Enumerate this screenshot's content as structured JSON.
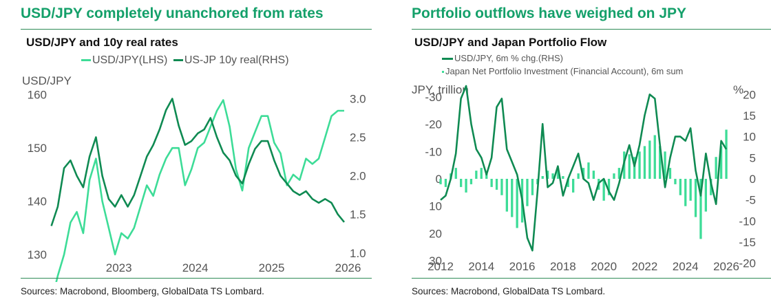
{
  "colors": {
    "light_green": "#3ddc97",
    "dark_green": "#0f8a52",
    "headline_green": "#14a06a",
    "rule": "#2e8b57"
  },
  "left": {
    "headline": "USD/JPY completely unanchored from rates",
    "subtitle": "USD/JPY and 10y real rates",
    "legend": [
      {
        "label": "USD/JPY(LHS)",
        "color": "#3ddc97"
      },
      {
        "label": "US-JP 10y real(RHS)",
        "color": "#0f8a52"
      }
    ],
    "source": "Sources: Macrobond, Bloomberg, GlobalData TS Lombard."
  },
  "right": {
    "headline": "Portfolio outflows have weighed on JPY",
    "subtitle": "USD/JPY and Japan Portfolio Flow",
    "legend": [
      {
        "label": "USD/JPY, 6m % chg.(RHS)",
        "color": "#0f8a52"
      },
      {
        "label": "Japan Net Portfolio Investment (Financial Account), 6m sum",
        "color": "#3ddc97"
      }
    ],
    "source": "Sources: Macrobond, GlobalData TS Lombard."
  },
  "chart_data": [
    {
      "type": "line",
      "title": "USD/JPY and 10y real rates",
      "left_axis_label": "USD/JPY",
      "left_ylim": [
        130,
        161
      ],
      "left_ticks": [
        "160",
        "150",
        "140",
        "130"
      ],
      "right_ylim": [
        0.98,
        3.12
      ],
      "right_ticks": [
        "3.0",
        "2.5",
        "2.0",
        "1.5",
        "1.0"
      ],
      "x_ticks": [
        "2023",
        "2024",
        "2025",
        "2026"
      ],
      "grid": false,
      "series": [
        {
          "name": "USD/JPY(LHS)",
          "axis": "left",
          "x": [
            "2022-03",
            "2022-04",
            "2022-05",
            "2022-06",
            "2022-07",
            "2022-08",
            "2022-09",
            "2022-10",
            "2022-11",
            "2022-12",
            "2023-01",
            "2023-02",
            "2023-03",
            "2023-04",
            "2023-05",
            "2023-06",
            "2023-07",
            "2023-08",
            "2023-09",
            "2023-10",
            "2023-11",
            "2023-12",
            "2024-01",
            "2024-02",
            "2024-03",
            "2024-04",
            "2024-05",
            "2024-06",
            "2024-07",
            "2024-08",
            "2024-09",
            "2024-10",
            "2024-11",
            "2024-12",
            "2025-01",
            "2025-02",
            "2025-03",
            "2025-04",
            "2025-05",
            "2025-06",
            "2025-07",
            "2025-08",
            "2025-09",
            "2025-10",
            "2025-11",
            "2025-12",
            "2026-01"
          ],
          "values": [
            121,
            126,
            130,
            136,
            138,
            134,
            144,
            148,
            140,
            135,
            130,
            134,
            133,
            135,
            139,
            143,
            141,
            145,
            148,
            150,
            150,
            143,
            146,
            150,
            151,
            154,
            157,
            159,
            154,
            146,
            142,
            150,
            153,
            156,
            156,
            151,
            149,
            143,
            145,
            144,
            148,
            147,
            148,
            152,
            156,
            157,
            157
          ]
        },
        {
          "name": "US-JP 10y real(RHS)",
          "axis": "right",
          "x": [
            "2022-03",
            "2022-04",
            "2022-05",
            "2022-06",
            "2022-07",
            "2022-08",
            "2022-09",
            "2022-10",
            "2022-11",
            "2022-12",
            "2023-01",
            "2023-02",
            "2023-03",
            "2023-04",
            "2023-05",
            "2023-06",
            "2023-07",
            "2023-08",
            "2023-09",
            "2023-10",
            "2023-11",
            "2023-12",
            "2024-01",
            "2024-02",
            "2024-03",
            "2024-04",
            "2024-05",
            "2024-06",
            "2024-07",
            "2024-08",
            "2024-09",
            "2024-10",
            "2024-11",
            "2024-12",
            "2025-01",
            "2025-02",
            "2025-03",
            "2025-04",
            "2025-05",
            "2025-06",
            "2025-07",
            "2025-08",
            "2025-09",
            "2025-10",
            "2025-11",
            "2025-12",
            "2026-01"
          ],
          "values": [
            1.35,
            1.6,
            2.1,
            2.2,
            2.0,
            1.85,
            2.25,
            2.5,
            2.0,
            1.7,
            1.6,
            1.75,
            1.6,
            1.75,
            2.0,
            2.25,
            2.4,
            2.6,
            2.85,
            3.0,
            2.65,
            2.4,
            2.45,
            2.55,
            2.6,
            2.75,
            2.5,
            2.3,
            2.2,
            2.0,
            1.9,
            2.15,
            2.35,
            2.45,
            2.45,
            2.2,
            2.0,
            1.9,
            1.8,
            1.75,
            1.8,
            1.7,
            1.65,
            1.7,
            1.65,
            1.5,
            1.4
          ]
        }
      ]
    },
    {
      "type": "bar",
      "title": "USD/JPY and Japan Portfolio Flow",
      "left_axis_label": "JPY, trillion",
      "right_axis_label": "%",
      "left_ylim": [
        34,
        -34
      ],
      "left_ticks": [
        "-30",
        "-20",
        "-10",
        "0",
        "10",
        "20",
        "30"
      ],
      "right_ylim": [
        -22,
        22
      ],
      "right_ticks": [
        "20",
        "15",
        "10",
        "5",
        "0",
        "-5",
        "-10",
        "-15",
        "-20"
      ],
      "x_ticks": [
        "2012",
        "2014",
        "2016",
        "2018",
        "2020",
        "2022",
        "2024",
        "2026"
      ],
      "grid": false,
      "series": [
        {
          "name": "Japan Net Portfolio Investment (Financial Account), 6m sum",
          "axis": "left",
          "mark": "bar",
          "x": [
            2012.0,
            2012.25,
            2012.5,
            2012.75,
            2013.0,
            2013.25,
            2013.5,
            2013.75,
            2014.0,
            2014.25,
            2014.5,
            2014.75,
            2015.0,
            2015.25,
            2015.5,
            2015.75,
            2016.0,
            2016.25,
            2016.5,
            2016.75,
            2017.0,
            2017.25,
            2017.5,
            2017.75,
            2018.0,
            2018.25,
            2018.5,
            2018.75,
            2019.0,
            2019.25,
            2019.5,
            2019.75,
            2020.0,
            2020.25,
            2020.5,
            2020.75,
            2021.0,
            2021.25,
            2021.5,
            2021.75,
            2022.0,
            2022.25,
            2022.5,
            2022.75,
            2023.0,
            2023.25,
            2023.5,
            2023.75,
            2024.0,
            2024.25,
            2024.5,
            2024.75,
            2025.0,
            2025.25,
            2025.5,
            2025.75,
            2026.0
          ],
          "values": [
            2,
            3,
            -2,
            -4,
            3,
            5,
            2,
            -3,
            -4,
            -2,
            3,
            4,
            6,
            12,
            14,
            18,
            16,
            10,
            6,
            2,
            -1,
            -3,
            -2,
            -4,
            -1,
            3,
            5,
            -2,
            -4,
            -6,
            -3,
            4,
            8,
            6,
            -2,
            -4,
            -10,
            -9,
            -8,
            -10,
            -12,
            -14,
            -16,
            -12,
            -10,
            -4,
            2,
            6,
            10,
            8,
            14,
            22,
            12,
            6,
            -8,
            -12,
            -18
          ]
        },
        {
          "name": "USD/JPY, 6m % chg.(RHS)",
          "axis": "right",
          "mark": "line",
          "x": [
            2012.0,
            2012.25,
            2012.5,
            2012.75,
            2013.0,
            2013.25,
            2013.5,
            2013.75,
            2014.0,
            2014.25,
            2014.5,
            2014.75,
            2015.0,
            2015.25,
            2015.5,
            2015.75,
            2016.0,
            2016.25,
            2016.5,
            2016.75,
            2017.0,
            2017.25,
            2017.5,
            2017.75,
            2018.0,
            2018.25,
            2018.5,
            2018.75,
            2019.0,
            2019.25,
            2019.5,
            2019.75,
            2020.0,
            2020.25,
            2020.5,
            2020.75,
            2021.0,
            2021.25,
            2021.5,
            2021.75,
            2022.0,
            2022.25,
            2022.5,
            2022.75,
            2023.0,
            2023.25,
            2023.5,
            2023.75,
            2024.0,
            2024.25,
            2024.5,
            2024.75,
            2025.0,
            2025.25,
            2025.5,
            2025.75,
            2026.0
          ],
          "values": [
            -5,
            -4,
            0,
            6,
            19,
            22,
            13,
            7,
            5,
            1,
            5,
            17,
            19,
            7,
            4,
            1,
            -5,
            -14,
            -17,
            -3,
            13,
            -2,
            -1,
            3,
            -4,
            0,
            3,
            6,
            0,
            -1,
            -5,
            -1,
            0,
            -3,
            -5,
            -1,
            4,
            8,
            3,
            8,
            15,
            20,
            19,
            8,
            -2,
            5,
            10,
            10,
            9,
            12,
            2,
            -4,
            6,
            -1,
            -6,
            9,
            7
          ]
        }
      ]
    }
  ]
}
